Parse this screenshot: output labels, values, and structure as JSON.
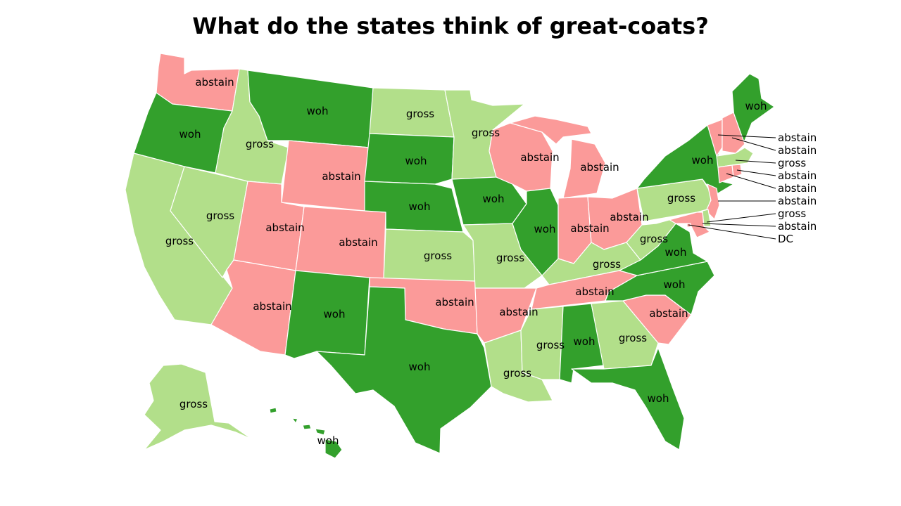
{
  "title": "What do the states think of great-coats?",
  "colors": {
    "woh": "#33a02c",
    "gross": "#b2df8a",
    "abstain": "#fb9a99"
  },
  "states": {
    "WA": {
      "vote": "abstain"
    },
    "OR": {
      "vote": "woh"
    },
    "CA": {
      "vote": "gross"
    },
    "NV": {
      "vote": "gross"
    },
    "ID": {
      "vote": "gross"
    },
    "MT": {
      "vote": "woh"
    },
    "WY": {
      "vote": "abstain"
    },
    "UT": {
      "vote": "abstain"
    },
    "AZ": {
      "vote": "abstain"
    },
    "CO": {
      "vote": "abstain"
    },
    "NM": {
      "vote": "woh"
    },
    "ND": {
      "vote": "gross"
    },
    "SD": {
      "vote": "woh"
    },
    "NE": {
      "vote": "woh"
    },
    "KS": {
      "vote": "gross"
    },
    "OK": {
      "vote": "abstain"
    },
    "TX": {
      "vote": "woh"
    },
    "MN": {
      "vote": "gross"
    },
    "IA": {
      "vote": "woh"
    },
    "MO": {
      "vote": "gross"
    },
    "AR": {
      "vote": "abstain"
    },
    "LA": {
      "vote": "gross"
    },
    "WI": {
      "vote": "abstain"
    },
    "IL": {
      "vote": "woh"
    },
    "MI": {
      "vote": "abstain"
    },
    "IN": {
      "vote": "abstain"
    },
    "OH": {
      "vote": "abstain"
    },
    "KY": {
      "vote": "gross"
    },
    "TN": {
      "vote": "abstain"
    },
    "MS": {
      "vote": "gross"
    },
    "AL": {
      "vote": "woh"
    },
    "GA": {
      "vote": "gross"
    },
    "FL": {
      "vote": "woh"
    },
    "SC": {
      "vote": "abstain"
    },
    "NC": {
      "vote": "woh"
    },
    "VA": {
      "vote": "woh"
    },
    "WV": {
      "vote": "gross"
    },
    "PA": {
      "vote": "gross"
    },
    "NY": {
      "vote": "woh"
    },
    "ME": {
      "vote": "woh"
    },
    "VT": {
      "vote": "abstain"
    },
    "NH": {
      "vote": "abstain"
    },
    "MA": {
      "vote": "gross"
    },
    "RI": {
      "vote": "abstain"
    },
    "CT": {
      "vote": "abstain"
    },
    "NJ": {
      "vote": "abstain"
    },
    "DE": {
      "vote": "gross"
    },
    "MD": {
      "vote": "abstain"
    },
    "DC": {
      "vote": "abstain"
    },
    "AK": {
      "vote": "gross"
    },
    "HI": {
      "vote": "woh"
    }
  },
  "callout_labels": [
    "abstain",
    "abstain",
    "gross",
    "abstain",
    "abstain",
    "abstain",
    "gross",
    "abstain",
    "DC"
  ]
}
